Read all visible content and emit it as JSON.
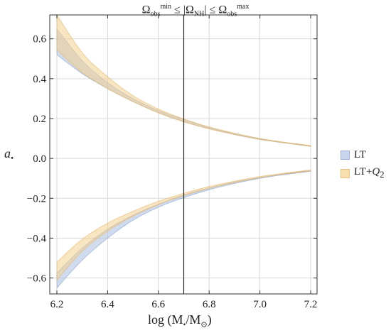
{
  "chart_data": {
    "type": "area",
    "title_html": "Ω<sub>obs</sub><sup>min</sup> ≤ |Ω<sub>NH</sub>| ≤ Ω<sub>obs</sub><sup>max</sup>",
    "xlabel_html": "log (M<sub>•</sub>/M<sub>⊙</sub>)",
    "ylabel_html": "a<sub>•</sub>",
    "xlim": [
      6.2,
      7.2
    ],
    "ylim": [
      -0.68,
      0.72
    ],
    "x_ticks": [
      6.2,
      6.4,
      6.6,
      6.8,
      7.0,
      7.2
    ],
    "x_tick_labels": [
      "6.2",
      "6.4",
      "6.6",
      "6.8",
      "7.0",
      "7.2"
    ],
    "y_ticks": [
      -0.6,
      -0.4,
      -0.2,
      0.0,
      0.2,
      0.4,
      0.6
    ],
    "y_tick_labels": [
      "−0.6",
      "−0.4",
      "−0.2",
      "0.0",
      "0.2",
      "0.4",
      "0.6"
    ],
    "grid": true,
    "vertical_line_x": 6.7,
    "legend_position": "right",
    "x": [
      6.2,
      6.3,
      6.4,
      6.5,
      6.6,
      6.7,
      6.8,
      6.9,
      7.0,
      7.1,
      7.2
    ],
    "series": [
      {
        "name": "LT",
        "color": "#a9bde0",
        "edge_color": "#8aa3d2",
        "upper_lower": [
          0.65,
          0.49,
          0.38,
          0.3,
          0.24,
          0.195,
          0.155,
          0.125,
          0.1,
          0.08,
          0.063
        ],
        "upper_upper": [
          0.52,
          0.425,
          0.35,
          0.285,
          0.23,
          0.185,
          0.15,
          0.12,
          0.095,
          0.077,
          0.06
        ],
        "lower_lower": [
          -0.65,
          -0.51,
          -0.4,
          -0.31,
          -0.245,
          -0.197,
          -0.157,
          -0.126,
          -0.1,
          -0.081,
          -0.065
        ],
        "lower_upper": [
          -0.575,
          -0.45,
          -0.355,
          -0.285,
          -0.23,
          -0.183,
          -0.148,
          -0.118,
          -0.095,
          -0.076,
          -0.06
        ]
      },
      {
        "name": "LT+Q2",
        "color": "#f3cf8e",
        "edge_color": "#e5b566",
        "upper_lower": [
          0.72,
          0.53,
          0.41,
          0.315,
          0.248,
          0.198,
          0.158,
          0.127,
          0.1,
          0.081,
          0.065
        ],
        "upper_upper": [
          0.545,
          0.43,
          0.35,
          0.285,
          0.228,
          0.183,
          0.148,
          0.12,
          0.095,
          0.077,
          0.06
        ],
        "lower_lower": [
          -0.61,
          -0.465,
          -0.365,
          -0.29,
          -0.232,
          -0.187,
          -0.15,
          -0.121,
          -0.097,
          -0.078,
          -0.063
        ],
        "lower_upper": [
          -0.52,
          -0.405,
          -0.325,
          -0.265,
          -0.215,
          -0.175,
          -0.141,
          -0.114,
          -0.091,
          -0.073,
          -0.058
        ]
      }
    ]
  },
  "legend": {
    "items": [
      {
        "label_html": "LT",
        "color": "#c9d5ec",
        "border": "#9fb3da"
      },
      {
        "label_html": "LT+<i>Q</i><sub>2</sub>",
        "color": "#f8dfae",
        "border": "#e9c27a"
      }
    ]
  }
}
